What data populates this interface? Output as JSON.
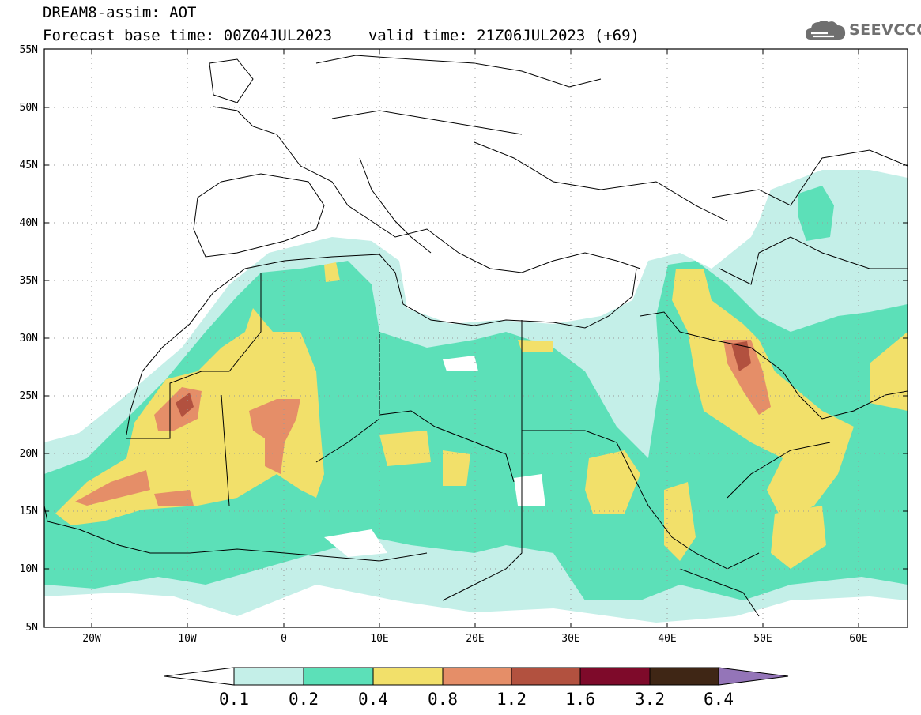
{
  "title": {
    "line1": "DREAM8-assim: AOT",
    "line2_base": "Forecast base time: 00Z04JUL2023",
    "line2_valid": "valid time: 21Z06JUL2023 (+69)"
  },
  "logo": {
    "text": "SEEVCCC",
    "icon": "cloud-logo-icon"
  },
  "map": {
    "lat_labels": [
      "55N",
      "50N",
      "45N",
      "40N",
      "35N",
      "30N",
      "25N",
      "20N",
      "15N",
      "10N",
      "5N"
    ],
    "lon_labels": [
      "20W",
      "10W",
      "0",
      "10E",
      "20E",
      "30E",
      "40E",
      "50E",
      "60E"
    ],
    "colors": {
      "c01": "#c4efe8",
      "c02": "#5ce0b8",
      "c04": "#f2e06a",
      "c08": "#e58e68",
      "c12": "#b2513f",
      "c16": "#7e0a2a",
      "c32": "#3f2615",
      "c64": "#9475b8",
      "border": "#000000"
    }
  },
  "colorbar": {
    "levels": [
      "0.1",
      "0.2",
      "0.4",
      "0.8",
      "1.2",
      "1.6",
      "3.2",
      "6.4"
    ],
    "colors": [
      "#c4efe8",
      "#5ce0b8",
      "#f2e06a",
      "#e58e68",
      "#b2513f",
      "#7e0a2a",
      "#3f2615"
    ],
    "under_color": "#ffffff",
    "over_color": "#9475b8"
  }
}
